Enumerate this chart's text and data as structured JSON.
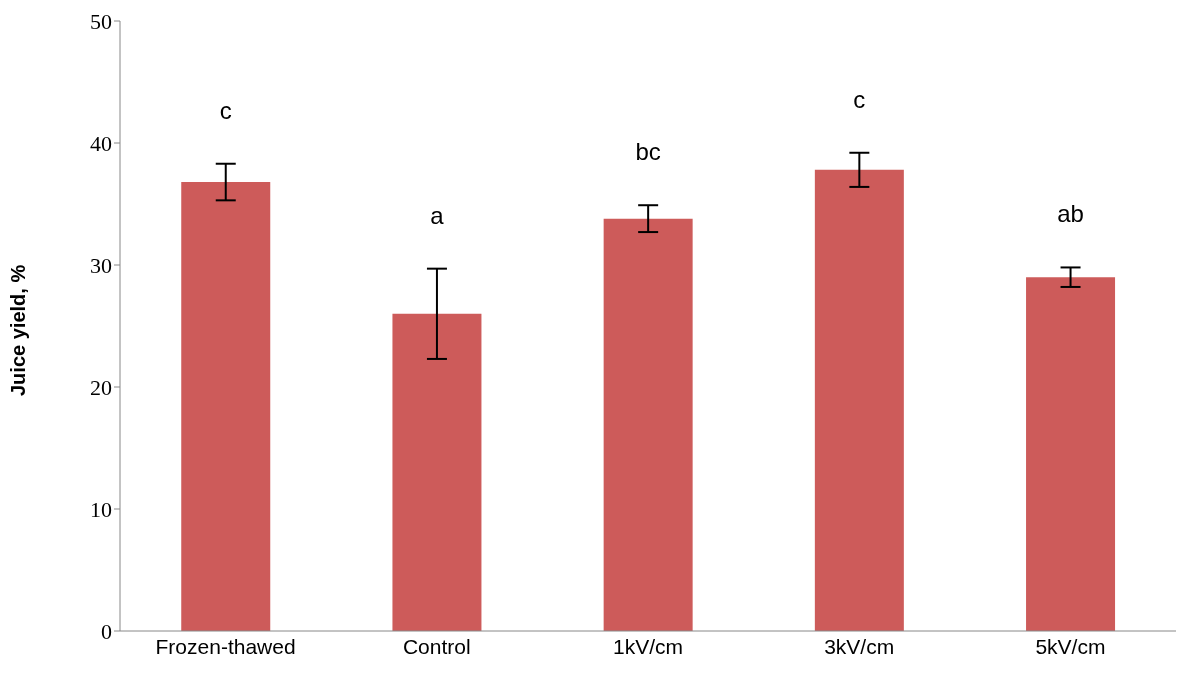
{
  "chart_data": {
    "type": "bar",
    "ylabel": "Juice yield, %",
    "categories": [
      "Frozen-thawed",
      "Control",
      "1kV/cm",
      "3kV/cm",
      "5kV/cm"
    ],
    "values": [
      36.8,
      26.0,
      33.8,
      37.8,
      29.0
    ],
    "errors": [
      1.5,
      3.7,
      1.1,
      1.4,
      0.8
    ],
    "color": "#cd5b5a",
    "ylim": [
      0,
      50
    ],
    "yticks": [
      0,
      10,
      20,
      30,
      40,
      50
    ],
    "grid": false,
    "annotations": [
      "c",
      "a",
      "bc",
      "c",
      "ab"
    ]
  }
}
